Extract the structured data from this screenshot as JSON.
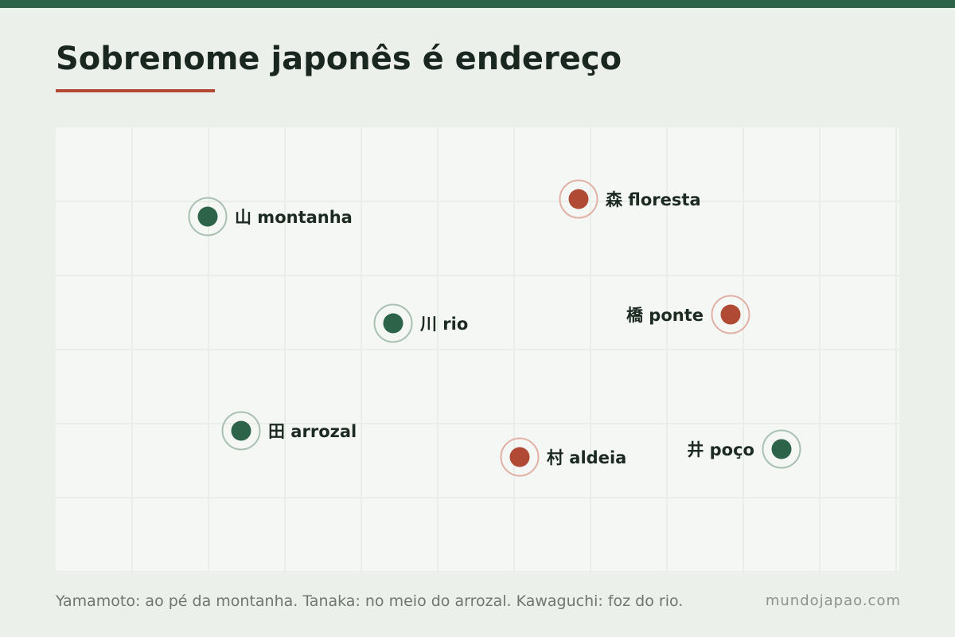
{
  "title": "Sobrenome japonês é endereço",
  "colors": {
    "accent": "#b04a35",
    "brand": "#2d6348",
    "ink": "#1a2620"
  },
  "places": [
    {
      "kanji": "山",
      "label": "山 montanha",
      "color": "green"
    },
    {
      "kanji": "森",
      "label": "森 floresta",
      "color": "red"
    },
    {
      "kanji": "川",
      "label": "川 rio",
      "color": "green"
    },
    {
      "kanji": "橋",
      "label": "橋 ponte",
      "color": "red"
    },
    {
      "kanji": "田",
      "label": "田 arrozal",
      "color": "green"
    },
    {
      "kanji": "村",
      "label": "村 aldeia",
      "color": "red"
    },
    {
      "kanji": "井",
      "label": "井 poço",
      "color": "green"
    }
  ],
  "caption": "Yamamoto: ao pé da montanha. Tanaka: no meio do arrozal. Kawaguchi: foz do rio.",
  "site": "mundojapao.com"
}
